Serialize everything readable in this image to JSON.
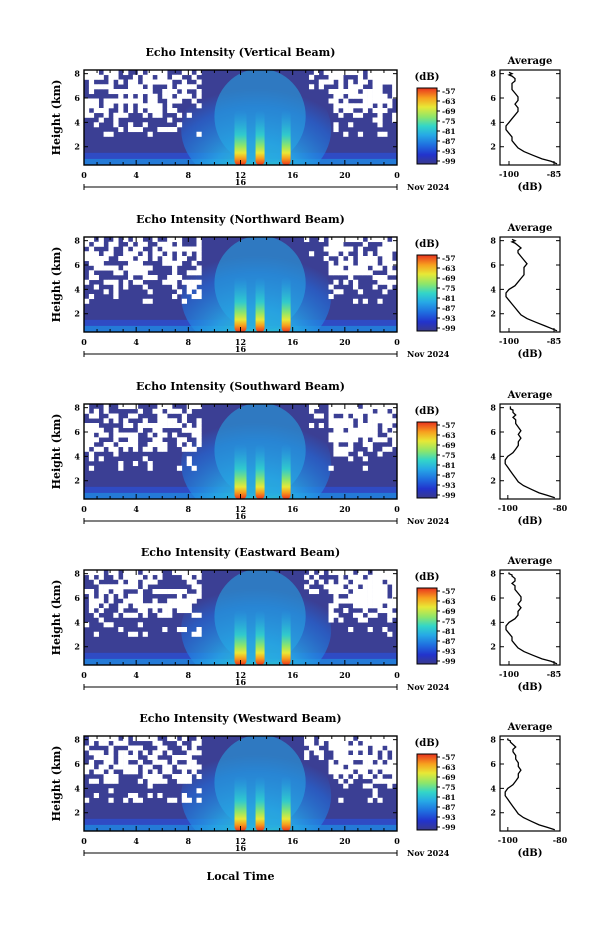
{
  "figure": {
    "xlabel": "Local Time",
    "date_label": "Nov 2024",
    "day_label": "16",
    "colorbar_unit": "(dB)",
    "profile_title": "Average",
    "profile_xlabel": "(dB)",
    "ylabel": "Height (km)"
  },
  "chart_data": [
    {
      "type": "heatmap",
      "title": "Echo Intensity (Vertical Beam)",
      "xlabel": "",
      "ylabel": "Height (km)",
      "x_ticks": [
        "0",
        "4",
        "8",
        "12",
        "16",
        "20",
        "0"
      ],
      "xlim": [
        0,
        24
      ],
      "y_ticks": [
        "2",
        "4",
        "6",
        "8"
      ],
      "ylim": [
        0.5,
        8.3
      ],
      "colorbar": {
        "label": "(dB)",
        "ticks": [
          "-57",
          "-63",
          "-69",
          "-75",
          "-81",
          "-87",
          "-93",
          "-99"
        ],
        "range": [
          -99,
          -57
        ]
      },
      "features": {
        "hot_cores_time": [
          12.0,
          13.5,
          15.5
        ],
        "core_peak_db": -57,
        "background_db": -96
      },
      "profile": {
        "title": "Average",
        "xlabel": "(dB)",
        "x_ticks": [
          "-100",
          "-85"
        ],
        "xlim": [
          -103,
          -83
        ],
        "y_ticks": [
          "2",
          "4",
          "6",
          "8"
        ],
        "ylim": [
          0.5,
          8.3
        ],
        "x": [
          -84,
          -86,
          -89,
          -92,
          -95,
          -97,
          -98,
          -99,
          -99,
          -100,
          -101,
          -101,
          -100,
          -99,
          -98,
          -97,
          -97,
          -98,
          -97,
          -97,
          -98,
          -99,
          -99,
          -99,
          -98,
          -98,
          -99,
          -100,
          -99,
          -100
        ],
        "y": [
          0.6,
          0.8,
          1.0,
          1.3,
          1.6,
          1.9,
          2.2,
          2.5,
          2.8,
          3.1,
          3.4,
          3.7,
          4.0,
          4.3,
          4.6,
          4.9,
          5.2,
          5.5,
          5.8,
          6.1,
          6.4,
          6.7,
          7.0,
          7.2,
          7.4,
          7.6,
          7.8,
          7.9,
          8.0,
          8.1
        ]
      }
    },
    {
      "type": "heatmap",
      "title": "Echo Intensity (Northward Beam)",
      "xlabel": "",
      "ylabel": "Height (km)",
      "x_ticks": [
        "0",
        "4",
        "8",
        "12",
        "16",
        "20",
        "0"
      ],
      "xlim": [
        0,
        24
      ],
      "y_ticks": [
        "2",
        "4",
        "6",
        "8"
      ],
      "ylim": [
        0.5,
        8.3
      ],
      "colorbar": {
        "label": "(dB)",
        "ticks": [
          "-57",
          "-63",
          "-69",
          "-75",
          "-81",
          "-87",
          "-93",
          "-99"
        ],
        "range": [
          -99,
          -57
        ]
      },
      "features": {
        "hot_cores_time": [
          12.0,
          13.5,
          15.5
        ],
        "core_peak_db": -58,
        "background_db": -96
      },
      "profile": {
        "title": "Average",
        "xlabel": "(dB)",
        "x_ticks": [
          "-100",
          "-85"
        ],
        "xlim": [
          -103,
          -83
        ],
        "y_ticks": [
          "2",
          "4",
          "6",
          "8"
        ],
        "ylim": [
          0.5,
          8.3
        ],
        "x": [
          -84,
          -86,
          -88,
          -91,
          -94,
          -96,
          -97,
          -98,
          -99,
          -100,
          -101,
          -101,
          -100,
          -98,
          -97,
          -96,
          -95,
          -95,
          -95,
          -94,
          -95,
          -96,
          -97,
          -97,
          -96,
          -97,
          -98,
          -99,
          -98,
          -99
        ],
        "y": [
          0.6,
          0.8,
          1.0,
          1.3,
          1.6,
          1.9,
          2.2,
          2.5,
          2.8,
          3.1,
          3.4,
          3.7,
          4.0,
          4.3,
          4.6,
          4.9,
          5.2,
          5.5,
          5.8,
          6.1,
          6.4,
          6.7,
          7.0,
          7.2,
          7.4,
          7.6,
          7.8,
          7.9,
          8.0,
          8.1
        ]
      }
    },
    {
      "type": "heatmap",
      "title": "Echo Intensity (Southward Beam)",
      "xlabel": "",
      "ylabel": "Height (km)",
      "x_ticks": [
        "0",
        "4",
        "8",
        "12",
        "16",
        "20",
        "0"
      ],
      "xlim": [
        0,
        24
      ],
      "y_ticks": [
        "2",
        "4",
        "6",
        "8"
      ],
      "ylim": [
        0.5,
        8.3
      ],
      "colorbar": {
        "label": "(dB)",
        "ticks": [
          "-57",
          "-63",
          "-69",
          "-75",
          "-81",
          "-87",
          "-93",
          "-99"
        ],
        "range": [
          -99,
          -57
        ]
      },
      "features": {
        "hot_cores_time": [
          12.0,
          13.5,
          15.5
        ],
        "core_peak_db": -57,
        "background_db": -96
      },
      "profile": {
        "title": "Average",
        "xlabel": "(dB)",
        "x_ticks": [
          "-100",
          "-80"
        ],
        "xlim": [
          -103,
          -80
        ],
        "y_ticks": [
          "2",
          "4",
          "6",
          "8"
        ],
        "ylim": [
          0.5,
          8.3
        ],
        "x": [
          -82,
          -85,
          -88,
          -91,
          -94,
          -96,
          -97,
          -98,
          -99,
          -100,
          -101,
          -101,
          -100,
          -98,
          -97,
          -96,
          -96,
          -95,
          -96,
          -95,
          -96,
          -97,
          -97,
          -98,
          -97,
          -98,
          -98,
          -99,
          -99,
          -99
        ],
        "y": [
          0.6,
          0.8,
          1.0,
          1.3,
          1.6,
          1.9,
          2.2,
          2.5,
          2.8,
          3.1,
          3.4,
          3.7,
          4.0,
          4.3,
          4.6,
          4.9,
          5.2,
          5.5,
          5.8,
          6.1,
          6.4,
          6.7,
          7.0,
          7.2,
          7.4,
          7.6,
          7.8,
          7.9,
          8.0,
          8.1
        ]
      }
    },
    {
      "type": "heatmap",
      "title": "Echo Intensity (Eastward Beam)",
      "xlabel": "",
      "ylabel": "Height (km)",
      "x_ticks": [
        "0",
        "4",
        "8",
        "12",
        "16",
        "20",
        "0"
      ],
      "xlim": [
        0,
        24
      ],
      "y_ticks": [
        "2",
        "4",
        "6",
        "8"
      ],
      "ylim": [
        0.5,
        8.3
      ],
      "colorbar": {
        "label": "(dB)",
        "ticks": [
          "-57",
          "-63",
          "-69",
          "-75",
          "-81",
          "-87",
          "-93",
          "-99"
        ],
        "range": [
          -99,
          -57
        ]
      },
      "features": {
        "hot_cores_time": [
          12.0,
          13.5,
          15.5
        ],
        "core_peak_db": -58,
        "background_db": -96
      },
      "profile": {
        "title": "Average",
        "xlabel": "(dB)",
        "x_ticks": [
          "-100",
          "-85"
        ],
        "xlim": [
          -103,
          -83
        ],
        "y_ticks": [
          "2",
          "4",
          "6",
          "8"
        ],
        "ylim": [
          0.5,
          8.3
        ],
        "x": [
          -84,
          -86,
          -89,
          -92,
          -95,
          -97,
          -98,
          -99,
          -99,
          -100,
          -101,
          -101,
          -100,
          -98,
          -97,
          -97,
          -96,
          -97,
          -96,
          -96,
          -97,
          -98,
          -98,
          -99,
          -98,
          -98,
          -99,
          -99,
          -100,
          -100
        ],
        "y": [
          0.6,
          0.8,
          1.0,
          1.3,
          1.6,
          1.9,
          2.2,
          2.5,
          2.8,
          3.1,
          3.4,
          3.7,
          4.0,
          4.3,
          4.6,
          4.9,
          5.2,
          5.5,
          5.8,
          6.1,
          6.4,
          6.7,
          7.0,
          7.2,
          7.4,
          7.6,
          7.8,
          7.9,
          8.0,
          8.1
        ]
      }
    },
    {
      "type": "heatmap",
      "title": "Echo Intensity (Westward Beam)",
      "xlabel": "Local Time",
      "ylabel": "Height (km)",
      "x_ticks": [
        "0",
        "4",
        "8",
        "12",
        "16",
        "20",
        "0"
      ],
      "xlim": [
        0,
        24
      ],
      "y_ticks": [
        "2",
        "4",
        "6",
        "8"
      ],
      "ylim": [
        0.5,
        8.3
      ],
      "colorbar": {
        "label": "(dB)",
        "ticks": [
          "-57",
          "-63",
          "-69",
          "-75",
          "-81",
          "-87",
          "-93",
          "-99"
        ],
        "range": [
          -99,
          -57
        ]
      },
      "features": {
        "hot_cores_time": [
          12.0,
          13.5,
          15.5
        ],
        "core_peak_db": -58,
        "background_db": -96
      },
      "profile": {
        "title": "Average",
        "xlabel": "(dB)",
        "x_ticks": [
          "-100",
          "-80"
        ],
        "xlim": [
          -103,
          -80
        ],
        "y_ticks": [
          "2",
          "4",
          "6",
          "8"
        ],
        "ylim": [
          0.5,
          8.3
        ],
        "x": [
          -82,
          -85,
          -88,
          -91,
          -94,
          -96,
          -97,
          -98,
          -99,
          -100,
          -101,
          -101,
          -100,
          -98,
          -97,
          -96,
          -96,
          -95,
          -96,
          -96,
          -97,
          -97,
          -98,
          -98,
          -97,
          -98,
          -99,
          -99,
          -100,
          -100
        ],
        "y": [
          0.6,
          0.8,
          1.0,
          1.3,
          1.6,
          1.9,
          2.2,
          2.5,
          2.8,
          3.1,
          3.4,
          3.7,
          4.0,
          4.3,
          4.6,
          4.9,
          5.2,
          5.5,
          5.8,
          6.1,
          6.4,
          6.7,
          7.0,
          7.2,
          7.4,
          7.6,
          7.8,
          7.9,
          8.0,
          8.1
        ]
      }
    }
  ]
}
